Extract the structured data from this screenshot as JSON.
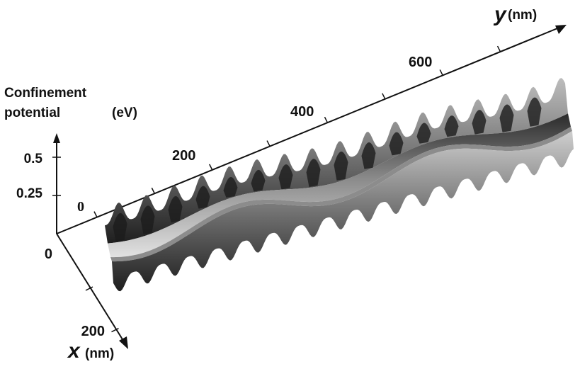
{
  "chart_data": {
    "type": "surface",
    "z_label_line1": "Confinement",
    "z_label_line2": "potential",
    "z_unit": "(eV)",
    "z_ticks": [
      "0.5",
      "0.25"
    ],
    "z_tick_values": [
      0.5,
      0.25
    ],
    "y_axis_letter": "y",
    "y_unit": "(nm)",
    "y_ticks": [
      "0",
      "200",
      "400",
      "600"
    ],
    "y_tick_values": [
      0,
      200,
      400,
      600
    ],
    "x_axis_letter": "x",
    "x_unit": "(nm)",
    "x_ticks": [
      "0",
      "200"
    ],
    "x_tick_values": [
      0,
      200
    ],
    "surface": {
      "y_range_nm": [
        0,
        700
      ],
      "ridge_period_nm": 42,
      "channel_wave_period_nm": 300
    }
  },
  "colors": {
    "ink": "#111111",
    "surface_dark": "#1a1a1a",
    "surface_mid": "#6e6e6e",
    "surface_light": "#dcdcdc"
  }
}
